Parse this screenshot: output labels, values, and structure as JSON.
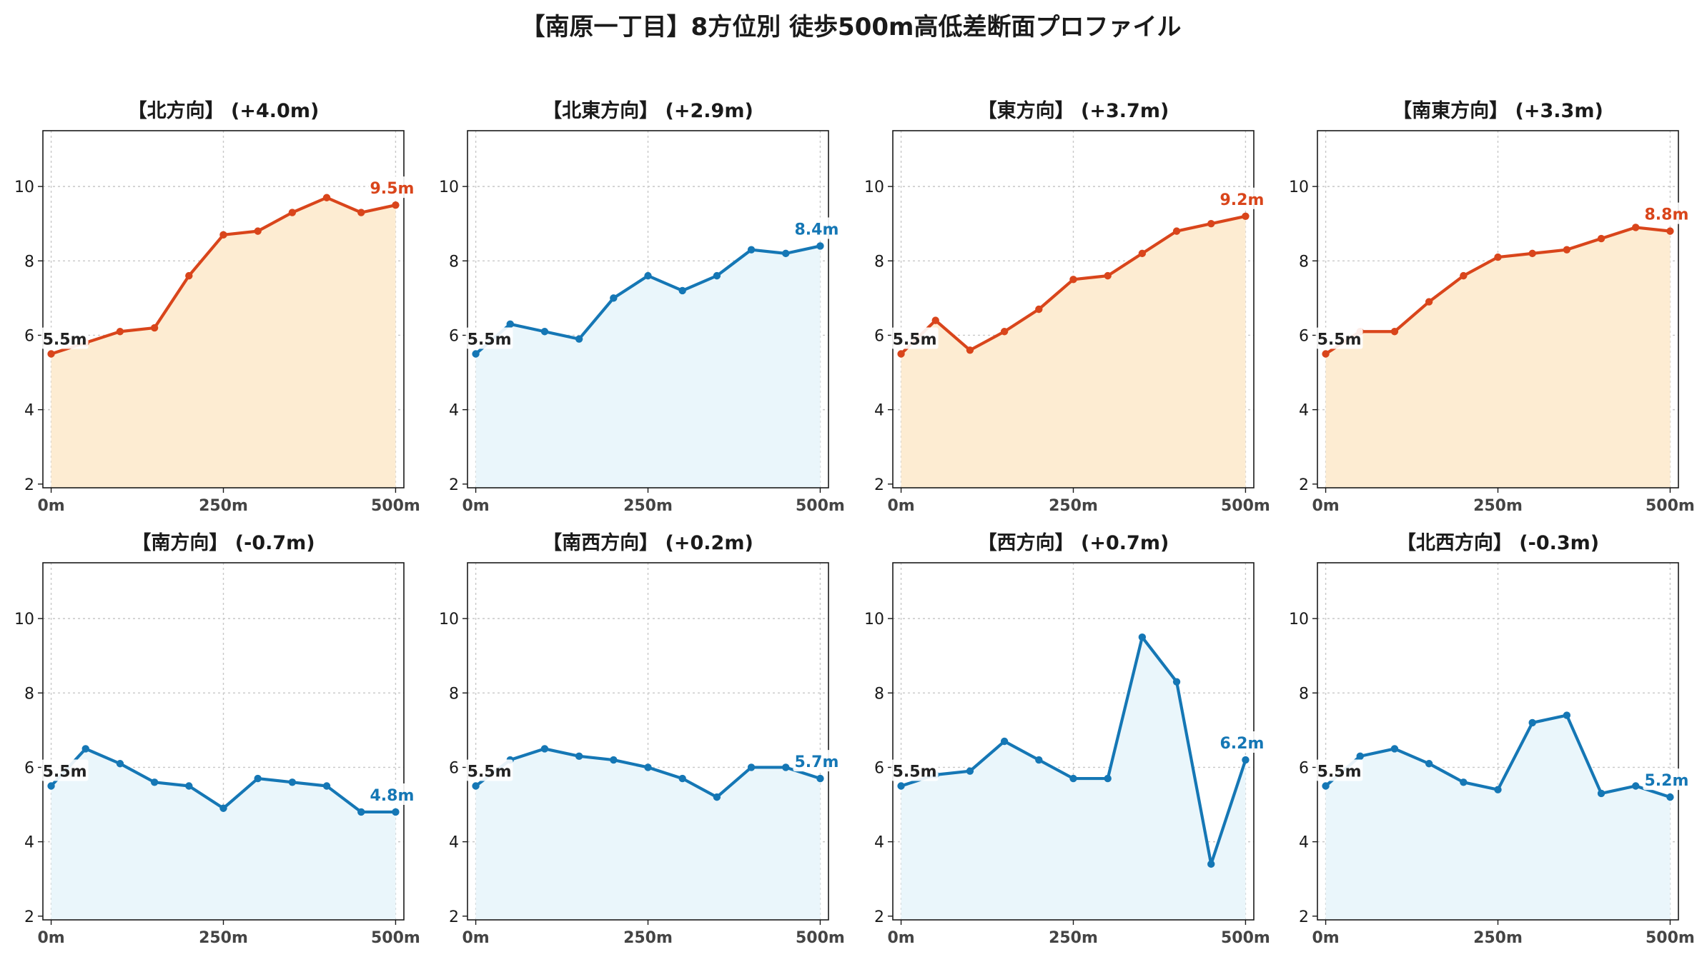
{
  "figure_title": "【南原一丁目】8方位別 徒歩500m高低差断面プロファイル",
  "colors": {
    "up": "#d9451b",
    "up_fill": "#fdecd2",
    "down": "#1577b5",
    "down_fill": "#eaf6fb",
    "grid": "#c8c8c8"
  },
  "chart_data": [
    {
      "type": "line",
      "title": "【北方向】 (+4.0m)",
      "trend": "up",
      "x": [
        0,
        50,
        100,
        150,
        200,
        250,
        300,
        350,
        400,
        450,
        500
      ],
      "y": [
        5.5,
        5.8,
        6.1,
        6.2,
        7.6,
        8.7,
        8.8,
        9.3,
        9.7,
        9.3,
        9.5
      ],
      "start_label": "5.5m",
      "end_label": "9.5m",
      "xticks": [
        "0m",
        "250m",
        "500m"
      ],
      "xtick_values": [
        0,
        250,
        500
      ],
      "yticks": [
        2,
        4,
        6,
        8,
        10
      ],
      "ylim": [
        1.9,
        11.5
      ],
      "xlim": [
        -12,
        512
      ],
      "grid": true
    },
    {
      "type": "line",
      "title": "【北東方向】 (+2.9m)",
      "trend": "down",
      "x": [
        0,
        50,
        100,
        150,
        200,
        250,
        300,
        350,
        400,
        450,
        500
      ],
      "y": [
        5.5,
        6.3,
        6.1,
        5.9,
        7.0,
        7.6,
        7.2,
        7.6,
        8.3,
        8.2,
        8.4
      ],
      "start_label": "5.5m",
      "end_label": "8.4m",
      "xticks": [
        "0m",
        "250m",
        "500m"
      ],
      "xtick_values": [
        0,
        250,
        500
      ],
      "yticks": [
        2,
        4,
        6,
        8,
        10
      ],
      "ylim": [
        1.9,
        11.5
      ],
      "xlim": [
        -12,
        512
      ],
      "grid": true
    },
    {
      "type": "line",
      "title": "【東方向】 (+3.7m)",
      "trend": "up",
      "x": [
        0,
        50,
        100,
        150,
        200,
        250,
        300,
        350,
        400,
        450,
        500
      ],
      "y": [
        5.5,
        6.4,
        5.6,
        6.1,
        6.7,
        7.5,
        7.6,
        8.2,
        8.8,
        9.0,
        9.2
      ],
      "start_label": "5.5m",
      "end_label": "9.2m",
      "xticks": [
        "0m",
        "250m",
        "500m"
      ],
      "xtick_values": [
        0,
        250,
        500
      ],
      "yticks": [
        2,
        4,
        6,
        8,
        10
      ],
      "ylim": [
        1.9,
        11.5
      ],
      "xlim": [
        -12,
        512
      ],
      "grid": true
    },
    {
      "type": "line",
      "title": "【南東方向】 (+3.3m)",
      "trend": "up",
      "x": [
        0,
        50,
        100,
        150,
        200,
        250,
        300,
        350,
        400,
        450,
        500
      ],
      "y": [
        5.5,
        6.1,
        6.1,
        6.9,
        7.6,
        8.1,
        8.2,
        8.3,
        8.6,
        8.9,
        8.8
      ],
      "start_label": "5.5m",
      "end_label": "8.8m",
      "xticks": [
        "0m",
        "250m",
        "500m"
      ],
      "xtick_values": [
        0,
        250,
        500
      ],
      "yticks": [
        2,
        4,
        6,
        8,
        10
      ],
      "ylim": [
        1.9,
        11.5
      ],
      "xlim": [
        -12,
        512
      ],
      "grid": true
    },
    {
      "type": "line",
      "title": "【南方向】 (-0.7m)",
      "trend": "down",
      "x": [
        0,
        50,
        100,
        150,
        200,
        250,
        300,
        350,
        400,
        450,
        500
      ],
      "y": [
        5.5,
        6.5,
        6.1,
        5.6,
        5.5,
        4.9,
        5.7,
        5.6,
        5.5,
        4.8,
        4.8
      ],
      "start_label": "5.5m",
      "end_label": "4.8m",
      "xticks": [
        "0m",
        "250m",
        "500m"
      ],
      "xtick_values": [
        0,
        250,
        500
      ],
      "yticks": [
        2,
        4,
        6,
        8,
        10
      ],
      "ylim": [
        1.9,
        11.5
      ],
      "xlim": [
        -12,
        512
      ],
      "grid": true
    },
    {
      "type": "line",
      "title": "【南西方向】 (+0.2m)",
      "trend": "down",
      "x": [
        0,
        50,
        100,
        150,
        200,
        250,
        300,
        350,
        400,
        450,
        500
      ],
      "y": [
        5.5,
        6.2,
        6.5,
        6.3,
        6.2,
        6.0,
        5.7,
        5.2,
        6.0,
        6.0,
        5.7
      ],
      "start_label": "5.5m",
      "end_label": "5.7m",
      "xticks": [
        "0m",
        "250m",
        "500m"
      ],
      "xtick_values": [
        0,
        250,
        500
      ],
      "yticks": [
        2,
        4,
        6,
        8,
        10
      ],
      "ylim": [
        1.9,
        11.5
      ],
      "xlim": [
        -12,
        512
      ],
      "grid": true
    },
    {
      "type": "line",
      "title": "【西方向】 (+0.7m)",
      "trend": "down",
      "x": [
        0,
        50,
        100,
        150,
        200,
        250,
        300,
        350,
        400,
        450,
        500
      ],
      "y": [
        5.5,
        5.8,
        5.9,
        6.7,
        6.2,
        5.7,
        5.7,
        9.5,
        8.3,
        3.4,
        6.2
      ],
      "start_label": "5.5m",
      "end_label": "6.2m",
      "xticks": [
        "0m",
        "250m",
        "500m"
      ],
      "xtick_values": [
        0,
        250,
        500
      ],
      "yticks": [
        2,
        4,
        6,
        8,
        10
      ],
      "ylim": [
        1.9,
        11.5
      ],
      "xlim": [
        -12,
        512
      ],
      "grid": true
    },
    {
      "type": "line",
      "title": "【北西方向】 (-0.3m)",
      "trend": "down",
      "x": [
        0,
        50,
        100,
        150,
        200,
        250,
        300,
        350,
        400,
        450,
        500
      ],
      "y": [
        5.5,
        6.3,
        6.5,
        6.1,
        5.6,
        5.4,
        7.2,
        7.4,
        5.3,
        5.5,
        5.2
      ],
      "start_label": "5.5m",
      "end_label": "5.2m",
      "xticks": [
        "0m",
        "250m",
        "500m"
      ],
      "xtick_values": [
        0,
        250,
        500
      ],
      "yticks": [
        2,
        4,
        6,
        8,
        10
      ],
      "ylim": [
        1.9,
        11.5
      ],
      "xlim": [
        -12,
        512
      ],
      "grid": true
    }
  ]
}
